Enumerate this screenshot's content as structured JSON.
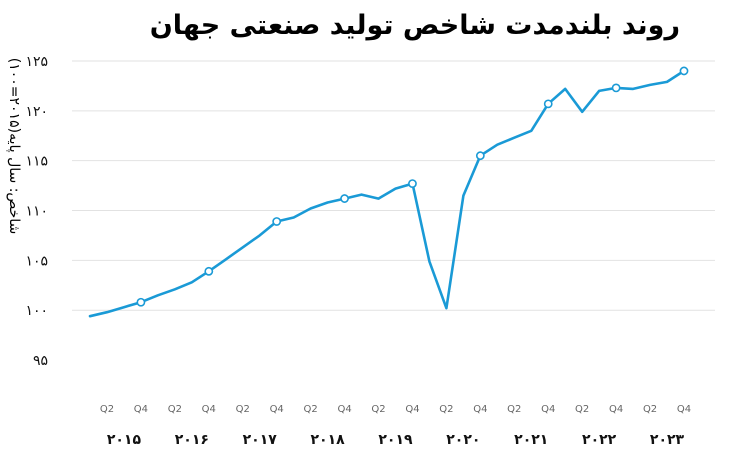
{
  "chart_data": {
    "type": "line",
    "title": "روند بلندمدت شاخص تولید صنعتی جهان",
    "ylabel": "شاخص: سال پایه(۲۰۱۵=۱۰۰)",
    "xlabel": "",
    "ylim": [
      93,
      126
    ],
    "yticks": [
      95,
      100,
      105,
      110,
      115,
      120,
      125
    ],
    "ytick_labels": [
      "۹۵",
      "۱۰۰",
      "۱۰۵",
      "۱۱۰",
      "۱۱۵",
      "۱۲۰",
      "۱۲۵"
    ],
    "years": [
      "۲۰۱۵",
      "۲۰۱۶",
      "۲۰۱۷",
      "۲۰۱۸",
      "۲۰۱۹",
      "۲۰۲۰",
      "۲۰۲۱",
      "۲۰۲۲",
      "۲۰۲۳"
    ],
    "quarter_labels": [
      "Q2",
      "Q4"
    ],
    "color": "#1a9ad6",
    "grid": "horizontal",
    "series": [
      {
        "values": [
          99.4,
          99.8,
          100.3,
          100.8,
          101.5,
          102.1,
          102.8,
          103.9,
          105.1,
          106.3,
          107.5,
          108.9,
          109.3,
          110.2,
          110.8,
          111.2,
          111.6,
          111.2,
          112.2,
          112.7,
          104.9,
          100.2,
          111.5,
          115.5,
          116.6,
          117.3,
          118.0,
          120.7,
          122.2,
          119.9,
          122.0,
          122.3,
          122.2,
          122.6,
          122.9,
          124.0
        ],
        "markers": [
          3,
          7,
          11,
          15,
          19,
          23,
          27,
          31,
          35
        ]
      }
    ]
  }
}
